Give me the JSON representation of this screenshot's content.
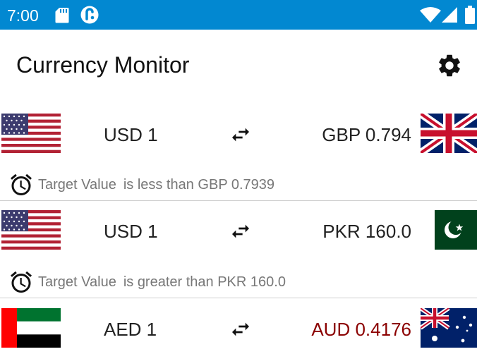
{
  "status_bar": {
    "time": "7:00",
    "icons": [
      "sd-card-icon",
      "app-notification-icon",
      "wifi-icon",
      "signal-icon",
      "battery-icon"
    ],
    "color": "#0288d1"
  },
  "app_bar": {
    "title": "Currency Monitor",
    "settings_icon": "gear-icon"
  },
  "rows": [
    {
      "from_flag": "united-states-flag",
      "from_text": "USD 1",
      "to_text": "GBP 0.794",
      "to_flag": "united-kingdom-flag",
      "to_color": "#222222",
      "alert": {
        "label": "Target Value",
        "condition": "is less than GBP 0.7939"
      }
    },
    {
      "from_flag": "united-states-flag",
      "from_text": "USD 1",
      "to_text": "PKR 160.0",
      "to_flag": "pakistan-flag",
      "to_color": "#222222",
      "alert": {
        "label": "Target Value",
        "condition": "is greater than PKR 160.0"
      }
    },
    {
      "from_flag": "united-arab-emirates-flag",
      "from_text": "AED 1",
      "to_text": "AUD 0.4176",
      "to_flag": "australia-flag",
      "to_color": "#8b0000"
    }
  ]
}
